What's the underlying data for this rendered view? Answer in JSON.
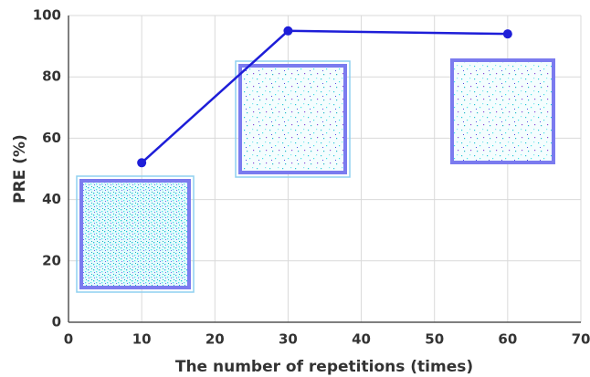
{
  "chart_data": {
    "type": "line",
    "x_label": "The number of repetitions (times)",
    "y_label": "PRE (%)",
    "x": [
      10,
      30,
      60
    ],
    "series": [
      {
        "color": "#1e1ed8",
        "values": [
          52,
          95,
          94
        ]
      }
    ],
    "xlim": [
      0,
      70
    ],
    "xticks": [
      0,
      10,
      20,
      30,
      40,
      50,
      60,
      70
    ],
    "ylim": [
      0,
      100
    ],
    "yticks": [
      0,
      20,
      40,
      60,
      80,
      100
    ],
    "grid": true
  }
}
